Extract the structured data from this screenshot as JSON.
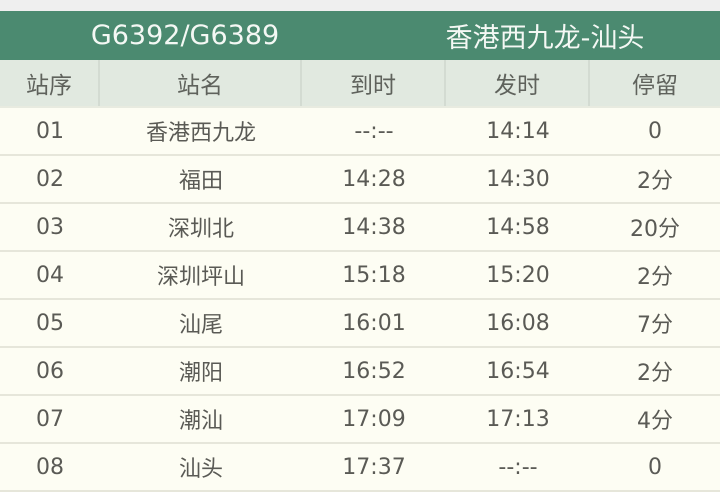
{
  "title": {
    "train": "G6392/G6389",
    "route": "香港西九龙-汕头"
  },
  "columns": [
    "站序",
    "站名",
    "到时",
    "发时",
    "停留"
  ],
  "rows": [
    [
      "01",
      "香港西九龙",
      "--:--",
      "14:14",
      "0"
    ],
    [
      "02",
      "福田",
      "14:28",
      "14:30",
      "2分"
    ],
    [
      "03",
      "深圳北",
      "14:38",
      "14:58",
      "20分"
    ],
    [
      "04",
      "深圳坪山",
      "15:18",
      "15:20",
      "2分"
    ],
    [
      "05",
      "汕尾",
      "16:01",
      "16:08",
      "7分"
    ],
    [
      "06",
      "潮阳",
      "16:52",
      "16:54",
      "2分"
    ],
    [
      "07",
      "潮汕",
      "17:09",
      "17:13",
      "4分"
    ],
    [
      "08",
      "汕头",
      "17:37",
      "--:--",
      "0"
    ]
  ],
  "colors": {
    "header_green": "#4b8a70",
    "column_header_bg": "#e1e9e0",
    "row_bg": "#fdfdf3"
  }
}
